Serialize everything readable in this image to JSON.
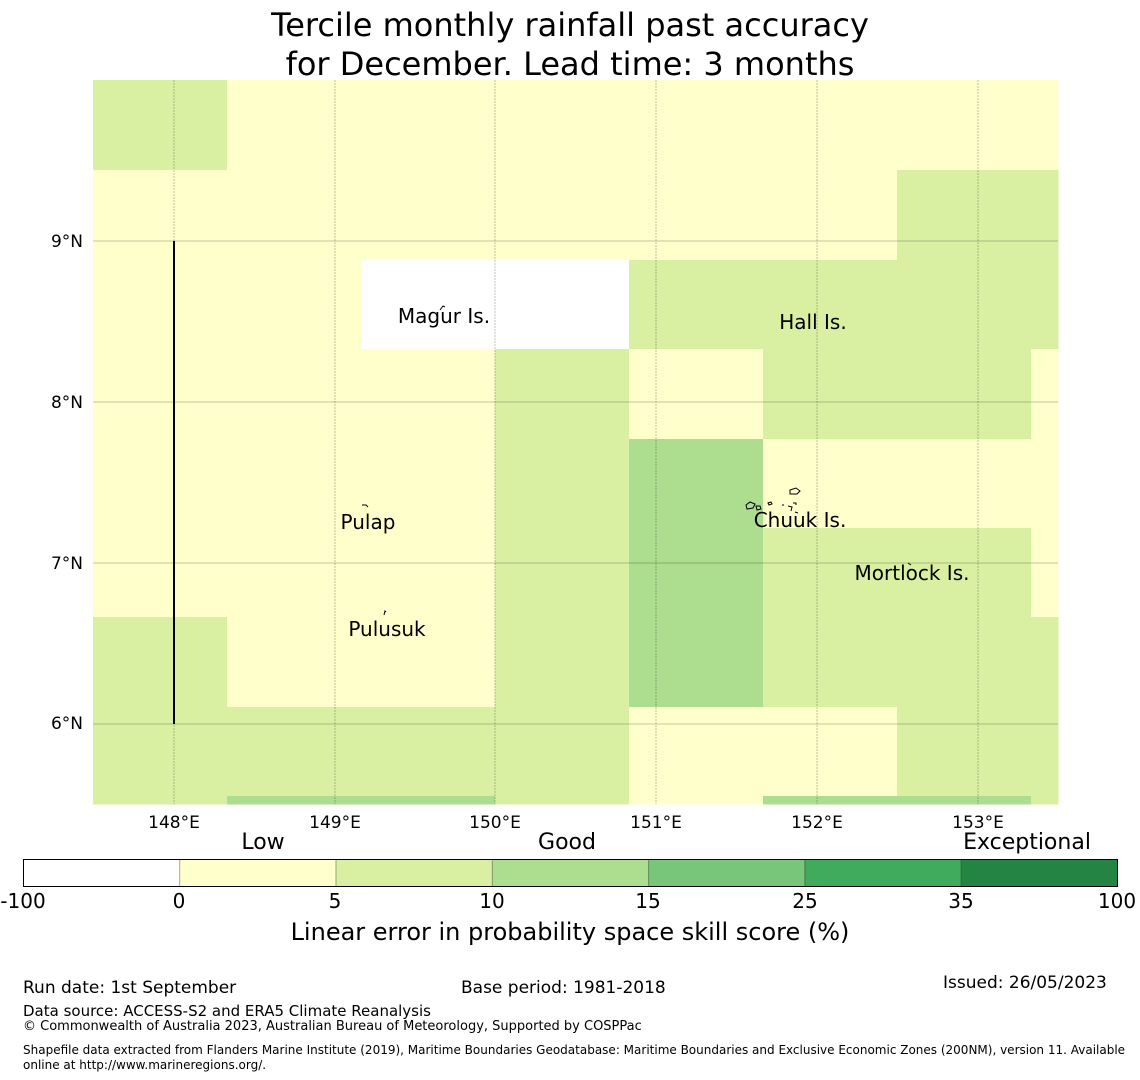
{
  "title": {
    "line1": "Tercile monthly rainfall past accuracy",
    "line2": "for December. Lead time: 3 months"
  },
  "map": {
    "lon_range": [
      147.5,
      153.5
    ],
    "lat_range": [
      5.5,
      10.0
    ],
    "x_ticks": [
      "148°E",
      "149°E",
      "150°E",
      "151°E",
      "152°E",
      "153°E"
    ],
    "y_ticks": [
      "9°N",
      "8°N",
      "7°N",
      "6°N"
    ],
    "gridlines": true,
    "places": [
      "Magur Is.",
      "Hall Is.",
      "Pulap",
      "Chuuk Is.",
      "Mortlock Is.",
      "Pulusuk"
    ]
  },
  "colorbar": {
    "category_labels": [
      "Low",
      "Good",
      "Exceptional"
    ],
    "ticks": [
      "-100",
      "0",
      "5",
      "10",
      "15",
      "25",
      "35",
      "100"
    ],
    "colors": [
      "#ffffff",
      "#ffffcc",
      "#d9f0a3",
      "#addd8e",
      "#78c679",
      "#41ab5d",
      "#238443"
    ],
    "label": "Linear error in probability space skill score (%)"
  },
  "footer": {
    "run_date": "Run date: 1st September",
    "base_period": "Base period: 1981-2018",
    "issued": "Issued: 26/05/2023",
    "data_source": "Data source: ACCESS-S2 and ERA5 Climate Reanalysis",
    "copyright": "© Commonwealth of Australia 2023, Australian Bureau of Meteorology, Supported by COSPPac",
    "shapefile_line1": "Shapefile data extracted from Flanders Marine Institute (2019), Maritime Boundaries Geodatabase: Maritime Boundaries and Exclusive Economic Zones (200NM), version 11. Available",
    "shapefile_line2": "online at http://www.marineregions.org/."
  }
}
